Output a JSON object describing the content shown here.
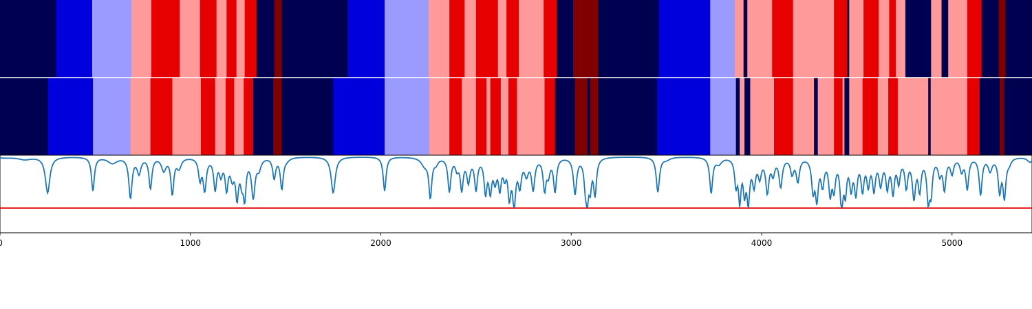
{
  "chart_data": {
    "type": "heatmap",
    "xlim": [
      0,
      5420
    ],
    "x_ticks": [
      {
        "value": 0,
        "label": "0"
      },
      {
        "value": 1000,
        "label": "1000"
      },
      {
        "value": 2000,
        "label": "2000"
      },
      {
        "value": 3000,
        "label": "3000"
      },
      {
        "value": 4000,
        "label": "4000"
      },
      {
        "value": 5000,
        "label": "5000"
      }
    ],
    "colormap": {
      "0": "#000050",
      "1": "#0000dd",
      "2": "#9a9aff",
      "3": "#ff9a9a",
      "4": "#e60000",
      "5": "#800000"
    },
    "rows": [
      {
        "segments": [
          [
            0,
            296,
            0
          ],
          [
            296,
            484,
            1
          ],
          [
            484,
            690,
            2
          ],
          [
            690,
            795,
            3
          ],
          [
            795,
            944,
            4
          ],
          [
            944,
            1050,
            3
          ],
          [
            1050,
            1137,
            4
          ],
          [
            1137,
            1190,
            3
          ],
          [
            1190,
            1242,
            4
          ],
          [
            1242,
            1285,
            3
          ],
          [
            1285,
            1347,
            4
          ],
          [
            1347,
            1440,
            0
          ],
          [
            1440,
            1480,
            5
          ],
          [
            1480,
            1825,
            0
          ],
          [
            1825,
            2020,
            1
          ],
          [
            2020,
            2250,
            2
          ],
          [
            2250,
            2360,
            3
          ],
          [
            2360,
            2440,
            4
          ],
          [
            2440,
            2500,
            3
          ],
          [
            2500,
            2615,
            4
          ],
          [
            2615,
            2660,
            3
          ],
          [
            2660,
            2725,
            4
          ],
          [
            2725,
            2855,
            3
          ],
          [
            2855,
            2925,
            4
          ],
          [
            2925,
            3010,
            0
          ],
          [
            3010,
            3140,
            5
          ],
          [
            3140,
            3460,
            0
          ],
          [
            3460,
            3730,
            1
          ],
          [
            3730,
            3860,
            2
          ],
          [
            3860,
            3905,
            3
          ],
          [
            3905,
            3925,
            0
          ],
          [
            3925,
            4055,
            3
          ],
          [
            4055,
            4165,
            4
          ],
          [
            4165,
            4380,
            3
          ],
          [
            4380,
            4450,
            4
          ],
          [
            4450,
            4460,
            0
          ],
          [
            4460,
            4535,
            3
          ],
          [
            4535,
            4615,
            4
          ],
          [
            4615,
            4670,
            3
          ],
          [
            4670,
            4705,
            4
          ],
          [
            4705,
            4755,
            3
          ],
          [
            4755,
            4890,
            0
          ],
          [
            4890,
            4945,
            3
          ],
          [
            4945,
            4980,
            0
          ],
          [
            4980,
            5080,
            3
          ],
          [
            5080,
            5155,
            4
          ],
          [
            5155,
            5245,
            0
          ],
          [
            5245,
            5280,
            5
          ],
          [
            5280,
            5420,
            0
          ]
        ]
      },
      {
        "segments": [
          [
            0,
            253,
            0
          ],
          [
            253,
            488,
            1
          ],
          [
            488,
            685,
            2
          ],
          [
            685,
            790,
            3
          ],
          [
            790,
            905,
            4
          ],
          [
            905,
            1055,
            3
          ],
          [
            1055,
            1130,
            4
          ],
          [
            1130,
            1185,
            3
          ],
          [
            1185,
            1230,
            4
          ],
          [
            1230,
            1280,
            3
          ],
          [
            1280,
            1330,
            4
          ],
          [
            1330,
            1435,
            0
          ],
          [
            1435,
            1478,
            5
          ],
          [
            1478,
            1750,
            0
          ],
          [
            1750,
            2020,
            1
          ],
          [
            2020,
            2255,
            2
          ],
          [
            2255,
            2360,
            3
          ],
          [
            2360,
            2425,
            4
          ],
          [
            2425,
            2500,
            3
          ],
          [
            2500,
            2555,
            4
          ],
          [
            2555,
            2575,
            3
          ],
          [
            2575,
            2630,
            4
          ],
          [
            2630,
            2670,
            3
          ],
          [
            2670,
            2715,
            4
          ],
          [
            2715,
            2860,
            3
          ],
          [
            2860,
            2915,
            4
          ],
          [
            2915,
            3020,
            0
          ],
          [
            3020,
            3085,
            5
          ],
          [
            3085,
            3100,
            0
          ],
          [
            3100,
            3140,
            5
          ],
          [
            3140,
            3450,
            0
          ],
          [
            3450,
            3730,
            1
          ],
          [
            3730,
            3865,
            2
          ],
          [
            3865,
            3885,
            0
          ],
          [
            3885,
            3910,
            3
          ],
          [
            3910,
            3940,
            0
          ],
          [
            3940,
            4065,
            3
          ],
          [
            4065,
            4165,
            4
          ],
          [
            4165,
            4275,
            3
          ],
          [
            4275,
            4295,
            0
          ],
          [
            4295,
            4380,
            3
          ],
          [
            4380,
            4425,
            4
          ],
          [
            4425,
            4435,
            3
          ],
          [
            4435,
            4460,
            0
          ],
          [
            4460,
            4530,
            3
          ],
          [
            4530,
            4610,
            4
          ],
          [
            4610,
            4665,
            3
          ],
          [
            4665,
            4715,
            4
          ],
          [
            4715,
            4875,
            3
          ],
          [
            4875,
            4888,
            0
          ],
          [
            4888,
            5080,
            3
          ],
          [
            5080,
            5145,
            4
          ],
          [
            5145,
            5250,
            0
          ],
          [
            5250,
            5275,
            5
          ],
          [
            5275,
            5420,
            0
          ]
        ]
      }
    ],
    "line_series": {
      "baseline": 0.0,
      "min_value": -1.0,
      "threshold": -1.0,
      "threshold_color": "#e00000",
      "line_color": "#1f77b4",
      "dips": [
        [
          20,
          0.02,
          60
        ],
        [
          130,
          0.05,
          40
        ],
        [
          250,
          0.7,
          14
        ],
        [
          488,
          0.65,
          9
        ],
        [
          590,
          0.12,
          30
        ],
        [
          685,
          0.78,
          10
        ],
        [
          730,
          0.3,
          12
        ],
        [
          790,
          0.6,
          9
        ],
        [
          860,
          0.25,
          14
        ],
        [
          905,
          0.7,
          9
        ],
        [
          940,
          0.2,
          14
        ],
        [
          1050,
          0.4,
          9
        ],
        [
          1075,
          0.62,
          10
        ],
        [
          1130,
          0.6,
          9
        ],
        [
          1160,
          0.3,
          10
        ],
        [
          1190,
          0.58,
          9
        ],
        [
          1220,
          0.35,
          12
        ],
        [
          1245,
          0.72,
          9
        ],
        [
          1270,
          0.4,
          10
        ],
        [
          1285,
          0.7,
          8
        ],
        [
          1330,
          0.75,
          11
        ],
        [
          1360,
          0.2,
          12
        ],
        [
          1440,
          0.4,
          9
        ],
        [
          1480,
          0.6,
          9
        ],
        [
          1505,
          0.05,
          18
        ],
        [
          1750,
          0.7,
          13
        ],
        [
          2020,
          0.66,
          9
        ],
        [
          2230,
          0.15,
          22
        ],
        [
          2260,
          0.75,
          9
        ],
        [
          2290,
          0.1,
          12
        ],
        [
          2360,
          0.65,
          9
        ],
        [
          2400,
          0.2,
          10
        ],
        [
          2425,
          0.6,
          9
        ],
        [
          2460,
          0.45,
          10
        ],
        [
          2500,
          0.6,
          9
        ],
        [
          2550,
          0.65,
          9
        ],
        [
          2575,
          0.6,
          9
        ],
        [
          2600,
          0.4,
          10
        ],
        [
          2625,
          0.55,
          9
        ],
        [
          2650,
          0.3,
          9
        ],
        [
          2675,
          0.7,
          9
        ],
        [
          2700,
          0.85,
          10
        ],
        [
          2730,
          0.5,
          10
        ],
        [
          2765,
          0.3,
          12
        ],
        [
          2800,
          0.6,
          10
        ],
        [
          2860,
          0.6,
          9
        ],
        [
          2880,
          0.3,
          10
        ],
        [
          2915,
          0.65,
          9
        ],
        [
          3020,
          0.7,
          10
        ],
        [
          3075,
          0.5,
          9
        ],
        [
          3085,
          0.6,
          8
        ],
        [
          3100,
          0.5,
          8
        ],
        [
          3125,
          0.7,
          9
        ],
        [
          3455,
          0.68,
          10
        ],
        [
          3500,
          0.05,
          22
        ],
        [
          3735,
          0.69,
          9
        ],
        [
          3775,
          0.12,
          18
        ],
        [
          3865,
          0.5,
          8
        ],
        [
          3885,
          0.8,
          8
        ],
        [
          3910,
          0.6,
          8
        ],
        [
          3930,
          0.8,
          9
        ],
        [
          3960,
          0.5,
          10
        ],
        [
          3990,
          0.35,
          10
        ],
        [
          4030,
          0.65,
          10
        ],
        [
          4060,
          0.3,
          10
        ],
        [
          4100,
          0.55,
          10
        ],
        [
          4160,
          0.3,
          10
        ],
        [
          4190,
          0.45,
          10
        ],
        [
          4270,
          0.6,
          9
        ],
        [
          4290,
          0.75,
          9
        ],
        [
          4320,
          0.5,
          10
        ],
        [
          4360,
          0.65,
          9
        ],
        [
          4380,
          0.55,
          9
        ],
        [
          4420,
          0.95,
          9
        ],
        [
          4440,
          0.6,
          8
        ],
        [
          4470,
          0.55,
          9
        ],
        [
          4495,
          0.65,
          9
        ],
        [
          4530,
          0.6,
          9
        ],
        [
          4560,
          0.5,
          9
        ],
        [
          4590,
          0.6,
          9
        ],
        [
          4625,
          0.5,
          10
        ],
        [
          4660,
          0.55,
          9
        ],
        [
          4690,
          0.65,
          9
        ],
        [
          4720,
          0.45,
          9
        ],
        [
          4760,
          0.55,
          9
        ],
        [
          4800,
          0.75,
          10
        ],
        [
          4830,
          0.6,
          9
        ],
        [
          4875,
          0.78,
          9
        ],
        [
          4890,
          0.6,
          8
        ],
        [
          4935,
          0.3,
          10
        ],
        [
          4960,
          0.6,
          9
        ],
        [
          5000,
          0.3,
          10
        ],
        [
          5050,
          0.25,
          10
        ],
        [
          5080,
          0.6,
          9
        ],
        [
          5150,
          0.72,
          9
        ],
        [
          5200,
          0.25,
          12
        ],
        [
          5250,
          0.65,
          9
        ],
        [
          5275,
          0.75,
          9
        ],
        [
          5300,
          0.1,
          12
        ],
        [
          5410,
          0.1,
          18
        ]
      ]
    }
  }
}
